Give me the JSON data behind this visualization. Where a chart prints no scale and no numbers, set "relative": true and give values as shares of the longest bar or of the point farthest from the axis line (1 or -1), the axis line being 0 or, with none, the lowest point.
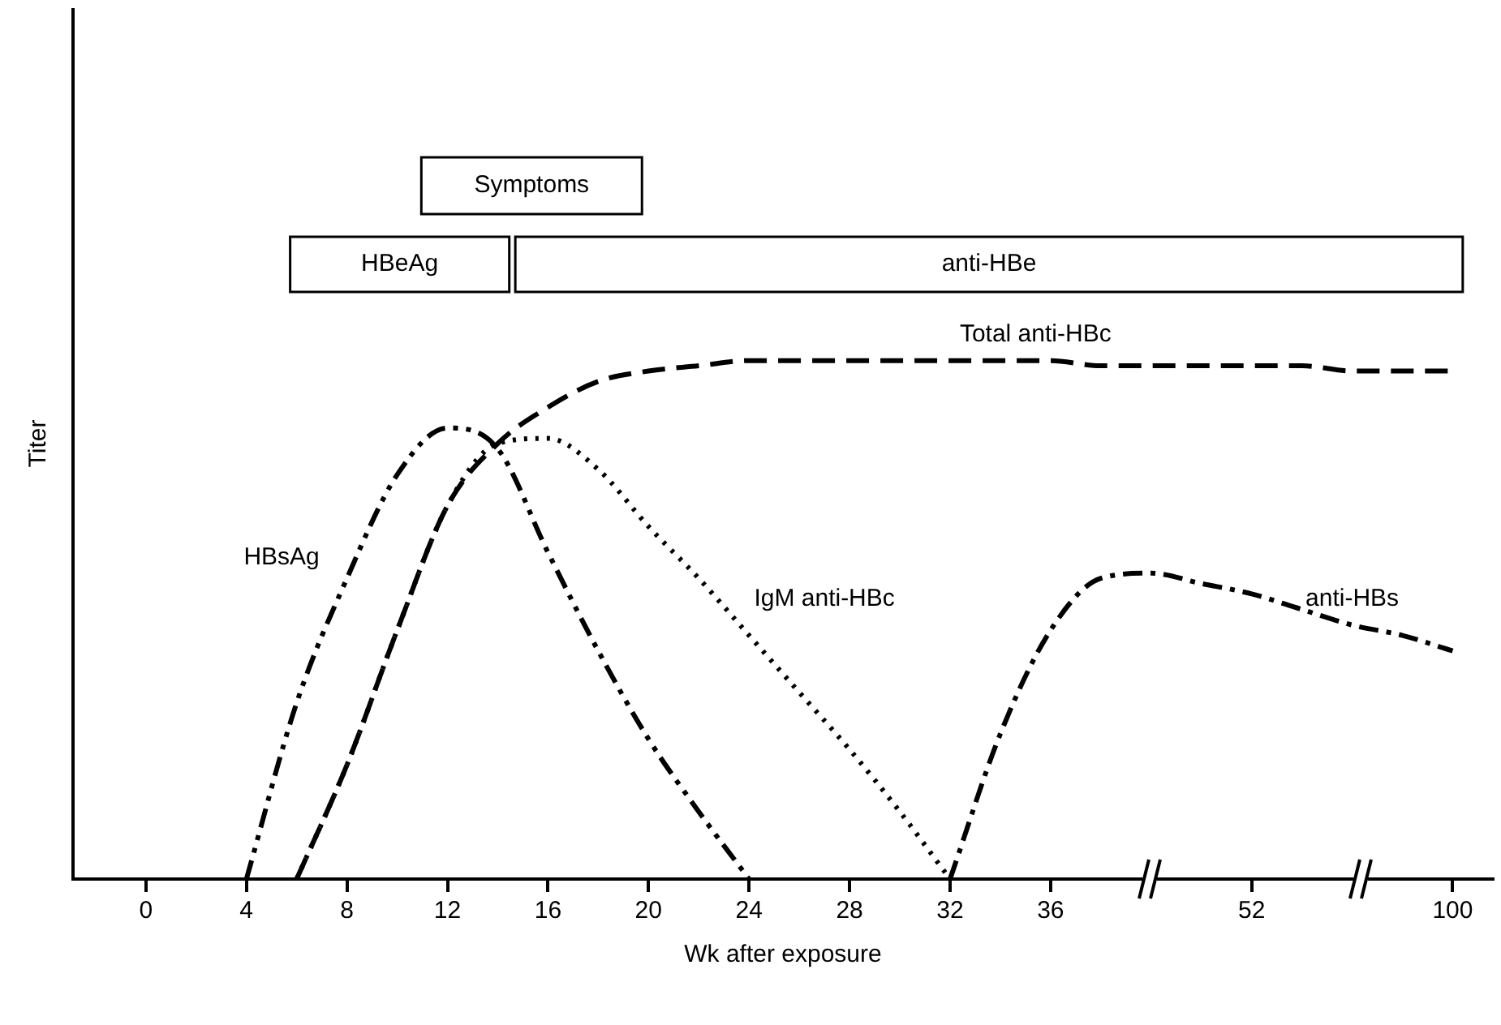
{
  "chart_data": {
    "type": "line",
    "relative": true,
    "xlabel": "Wk after exposure",
    "ylabel": "Titer",
    "categories": [
      "0",
      null,
      "4",
      null,
      "8",
      null,
      "12",
      null,
      "16",
      null,
      "20",
      null,
      "24",
      null,
      "28",
      null,
      "32",
      null,
      "36",
      null,
      null,
      null,
      "52",
      null,
      null,
      null,
      "100"
    ],
    "series": [
      {
        "name": "HBsAg",
        "color": "#000000",
        "line_style": "dashdotdot",
        "values": [
          null,
          null,
          0,
          0.34,
          0.58,
          0.78,
          0.87,
          0.83,
          0.63,
          0.44,
          0.27,
          0.13,
          0,
          null,
          null,
          null,
          null,
          null,
          null,
          null,
          null,
          null,
          null,
          null,
          null,
          null,
          null
        ]
      },
      {
        "name": "Total anti-HBc",
        "color": "#000000",
        "line_style": "dashed",
        "values": [
          null,
          null,
          null,
          0,
          0.22,
          0.48,
          0.72,
          0.84,
          0.91,
          0.96,
          0.98,
          0.99,
          1,
          1,
          1,
          1,
          1,
          1,
          1,
          0.99,
          0.99,
          0.99,
          0.99,
          0.99,
          0.98,
          0.98,
          0.98
        ]
      },
      {
        "name": "IgM anti-HBc",
        "color": "#000000",
        "line_style": "dotted",
        "values": [
          null,
          null,
          null,
          0,
          0.22,
          0.48,
          0.72,
          0.84,
          0.85,
          0.79,
          0.68,
          0.58,
          0.47,
          0.36,
          0.25,
          0.13,
          0,
          null,
          null,
          null,
          null,
          null,
          null,
          null,
          null,
          null,
          null
        ]
      },
      {
        "name": "anti-HBs",
        "color": "#000000",
        "line_style": "dashdot",
        "values": [
          null,
          null,
          null,
          null,
          null,
          null,
          null,
          null,
          null,
          null,
          null,
          null,
          null,
          null,
          null,
          null,
          0,
          0.28,
          0.48,
          0.58,
          0.59,
          0.57,
          0.55,
          0.52,
          0.49,
          0.47,
          0.44
        ]
      }
    ],
    "annotations": [
      "Symptoms",
      "HBeAg",
      "anti-HBe"
    ],
    "grid": false,
    "legend": false,
    "marker": "none"
  }
}
